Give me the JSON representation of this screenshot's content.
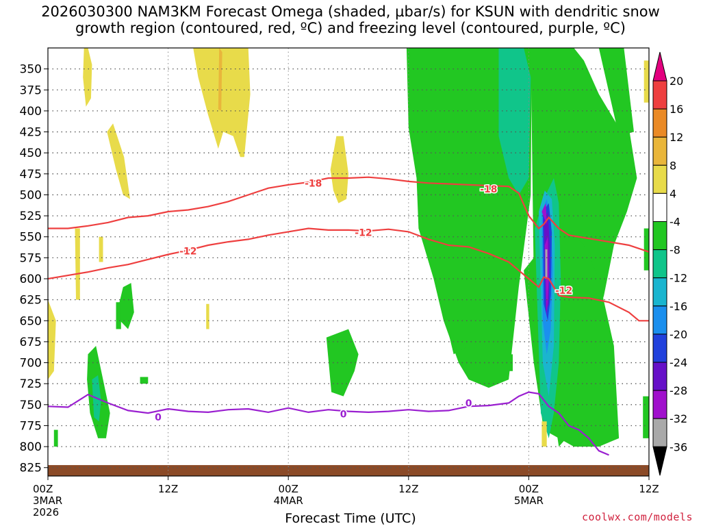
{
  "title_line1": "2026030300 NAM3KM Forecast Omega (shaded, µbar/s) for KSUN with dendritic snow",
  "title_line2": "growth region (contoured, red, ºC) and freezing level (contoured, purple, ºC)",
  "xaxis_title": "Forecast Time (UTC)",
  "credit": "coolwx.com/models",
  "chart_data": {
    "type": "heatmap",
    "title": "2026030300 NAM3KM Forecast Omega (shaded, µbar/s) for KSUN with dendritic snow growth region (contoured, red, ºC) and freezing level (contoured, purple, ºC)",
    "xlabel": "Forecast Time (UTC)",
    "ylabel": "",
    "x_ticks": [
      {
        "hour": 0,
        "label": "00Z",
        "sub1": "3MAR",
        "sub2": "2026"
      },
      {
        "hour": 12,
        "label": "12Z",
        "sub1": "",
        "sub2": ""
      },
      {
        "hour": 24,
        "label": "00Z",
        "sub1": "4MAR",
        "sub2": ""
      },
      {
        "hour": 36,
        "label": "12Z",
        "sub1": "",
        "sub2": ""
      },
      {
        "hour": 48,
        "label": "00Z",
        "sub1": "5MAR",
        "sub2": ""
      },
      {
        "hour": 60,
        "label": "12Z",
        "sub1": "",
        "sub2": ""
      }
    ],
    "xlim": [
      0,
      60
    ],
    "y_ticks": [
      350,
      375,
      400,
      425,
      450,
      475,
      500,
      525,
      550,
      575,
      600,
      625,
      650,
      675,
      700,
      725,
      750,
      775,
      800,
      825
    ],
    "ylim": [
      325,
      835
    ],
    "y_inverted": true,
    "colorbar": {
      "labels": [
        "20",
        "16",
        "12",
        "8",
        "4",
        "-4",
        "-8",
        "-12",
        "-16",
        "-20",
        "-24",
        "-28",
        "-32",
        "-36"
      ],
      "bins": [
        {
          "color": "#e3007f"
        },
        {
          "color": "#ee3f3f"
        },
        {
          "color": "#ea8a26"
        },
        {
          "color": "#e9b63b"
        },
        {
          "color": "#e8db4a"
        },
        {
          "color": "#ffffff"
        },
        {
          "color": "#22c722"
        },
        {
          "color": "#10c58a"
        },
        {
          "color": "#1ab5cf"
        },
        {
          "color": "#1b8fee"
        },
        {
          "color": "#2141dc"
        },
        {
          "color": "#6610c8"
        },
        {
          "color": "#a010cc"
        },
        {
          "color": "#a9a9a9"
        },
        {
          "color": "#000000"
        }
      ]
    },
    "omega_regions": [
      {
        "level": "4",
        "x": [
          3.6,
          4.0,
          4.4,
          4.3,
          3.8,
          3.5,
          3.6
        ],
        "y": [
          325,
          325,
          345,
          385,
          395,
          360,
          325
        ]
      },
      {
        "level": "4",
        "x": [
          14.5,
          20.0,
          20.2,
          19.6,
          19.2,
          18.5,
          17.5,
          17.0,
          16.0,
          15.0,
          14.5
        ],
        "y": [
          325,
          325,
          380,
          455,
          455,
          430,
          425,
          445,
          405,
          360,
          325
        ]
      },
      {
        "level": "8",
        "x": [
          17.1,
          17.4,
          17.3,
          17.0,
          17.1
        ],
        "y": [
          325,
          330,
          400,
          398,
          325
        ]
      },
      {
        "level": "4",
        "x": [
          5.9,
          6.5,
          7.6,
          8.2,
          7.5,
          6.8,
          6.3,
          5.9
        ],
        "y": [
          425,
          415,
          455,
          505,
          500,
          470,
          445,
          425
        ]
      },
      {
        "level": "4",
        "x": [
          28.2,
          28.8,
          29.5,
          30.0,
          29.8,
          29.0,
          28.5,
          28.2
        ],
        "y": [
          470,
          430,
          430,
          475,
          505,
          510,
          495,
          470
        ]
      },
      {
        "level": "4",
        "x": [
          2.7,
          3.2,
          3.2,
          2.8,
          2.7
        ],
        "y": [
          540,
          540,
          625,
          625,
          540
        ]
      },
      {
        "level": "4",
        "x": [
          0.0,
          0.8,
          0.6,
          0.0,
          0.0
        ],
        "y": [
          625,
          650,
          710,
          720,
          625
        ]
      },
      {
        "level": "4",
        "x": [
          5.1,
          5.5,
          5.5,
          5.1,
          5.1
        ],
        "y": [
          550,
          550,
          580,
          580,
          550
        ]
      },
      {
        "level": "4",
        "x": [
          15.8,
          16.1,
          16.1,
          15.8,
          15.8
        ],
        "y": [
          630,
          630,
          660,
          660,
          630
        ]
      },
      {
        "level": "4",
        "x": [
          60.5,
          59.5,
          59.5,
          60.5
        ],
        "y": [
          340,
          340,
          390,
          390
        ]
      },
      {
        "level": "-4",
        "x": [
          35.8,
          48.3,
          48.2,
          47.0,
          46.0,
          44.0,
          42.0,
          41.0,
          39.5,
          38.5,
          37.5,
          37.0,
          36.8,
          36.0,
          35.8
        ],
        "y": [
          325,
          325,
          500,
          610,
          720,
          730,
          720,
          700,
          650,
          600,
          560,
          540,
          480,
          420,
          325
        ]
      },
      {
        "level": "-8",
        "x": [
          45.0,
          47.5,
          48.2,
          48.0,
          47.0,
          46.0,
          45.0,
          45.0
        ],
        "y": [
          325,
          325,
          360,
          480,
          500,
          480,
          430,
          325
        ]
      },
      {
        "level": "-4",
        "x": [
          39.0,
          41.5,
          43.0,
          42.0,
          40.5,
          39.5,
          39.0
        ],
        "y": [
          560,
          560,
          590,
          680,
          690,
          640,
          560
        ]
      },
      {
        "level": "-4",
        "x": [
          48.2,
          52.5,
          53.5,
          55.0,
          57.0,
          58.0,
          58.8,
          57.8,
          56.5,
          55.5,
          54.0,
          52.5,
          51.0,
          50.5,
          49.5,
          48.5,
          48.2
        ],
        "y": [
          325,
          325,
          340,
          380,
          420,
          420,
          480,
          520,
          560,
          620,
          680,
          780,
          800,
          760,
          680,
          600,
          325
        ]
      },
      {
        "level": "-4",
        "x": [
          55.0,
          57.5,
          58.5,
          57.0,
          55.0
        ],
        "y": [
          325,
          325,
          425,
          430,
          325
        ]
      },
      {
        "level": "-4",
        "x": [
          50.0,
          53.0,
          54.0,
          52.0,
          50.5,
          50.0
        ],
        "y": [
          500,
          500,
          620,
          620,
          560,
          500
        ]
      },
      {
        "level": "-4",
        "x": [
          47.5,
          49.5,
          51.0,
          53.5,
          55.0,
          56.5,
          57.0,
          55.0,
          52.5,
          51.0,
          49.5,
          48.5,
          47.5
        ],
        "y": [
          590,
          560,
          530,
          560,
          600,
          680,
          790,
          800,
          800,
          790,
          780,
          700,
          590
        ]
      },
      {
        "level": "-8",
        "x": [
          48.6,
          49.5,
          50.5,
          51.0,
          51.2,
          51.0,
          50.5,
          50.0,
          49.2,
          48.6
        ],
        "y": [
          540,
          505,
          480,
          510,
          600,
          700,
          760,
          790,
          760,
          540
        ]
      },
      {
        "level": "-12",
        "x": [
          49.0,
          49.6,
          50.3,
          50.6,
          50.5,
          50.0,
          49.4,
          49.0
        ],
        "y": [
          520,
          495,
          505,
          560,
          680,
          740,
          700,
          520
        ]
      },
      {
        "level": "-16",
        "x": [
          49.3,
          49.8,
          50.2,
          50.4,
          50.2,
          49.8,
          49.4,
          49.3
        ],
        "y": [
          520,
          505,
          530,
          590,
          660,
          690,
          650,
          520
        ]
      },
      {
        "level": "-20",
        "x": [
          49.4,
          50.0,
          50.3,
          50.2,
          49.9,
          49.5,
          49.4
        ],
        "y": [
          520,
          510,
          545,
          620,
          650,
          630,
          520
        ]
      },
      {
        "level": "-24",
        "x": [
          49.5,
          49.9,
          50.1,
          50.0,
          49.7,
          49.5
        ],
        "y": [
          530,
          520,
          560,
          630,
          640,
          530
        ]
      },
      {
        "level": "-28",
        "x": [
          49.6,
          49.9,
          50.0,
          49.8,
          49.6
        ],
        "y": [
          560,
          550,
          600,
          645,
          560
        ]
      },
      {
        "level": "-28",
        "x": [
          49.3,
          49.7,
          49.8,
          49.3
        ],
        "y": [
          520,
          510,
          535,
          520
        ]
      },
      {
        "level": "-32",
        "x": [
          49.65,
          49.85,
          49.85,
          49.65
        ],
        "y": [
          565,
          565,
          600,
          600
        ]
      },
      {
        "level": "-4",
        "x": [
          7.5,
          8.3,
          8.6,
          8.0,
          7.2,
          6.9,
          7.5
        ],
        "y": [
          610,
          605,
          640,
          660,
          650,
          640,
          610
        ]
      },
      {
        "level": "-4",
        "x": [
          6.8,
          7.3,
          7.3,
          6.8
        ],
        "y": [
          628,
          628,
          660,
          660
        ]
      },
      {
        "level": "-4",
        "x": [
          4.0,
          4.8,
          5.5,
          6.2,
          5.8,
          5.0,
          4.2,
          3.9,
          4.0
        ],
        "y": [
          690,
          680,
          720,
          760,
          790,
          790,
          760,
          720,
          690
        ]
      },
      {
        "level": "-8",
        "x": [
          4.4,
          5.0,
          5.3,
          5.1,
          4.6,
          4.4
        ],
        "y": [
          720,
          715,
          745,
          770,
          765,
          720
        ]
      },
      {
        "level": "-4",
        "x": [
          0.6,
          1.0,
          1.0,
          0.6
        ],
        "y": [
          780,
          780,
          800,
          800
        ]
      },
      {
        "level": "-4",
        "x": [
          9.2,
          10.0,
          10.0,
          9.2
        ],
        "y": [
          717,
          717,
          725,
          725
        ]
      },
      {
        "level": "-4",
        "x": [
          27.8,
          30.0,
          31.0,
          30.6,
          29.5,
          28.3,
          27.8
        ],
        "y": [
          670,
          660,
          690,
          710,
          740,
          735,
          670
        ]
      },
      {
        "level": "-4",
        "x": [
          45.8,
          46.4,
          46.4,
          45.8
        ],
        "y": [
          690,
          690,
          710,
          710
        ]
      },
      {
        "level": "-4",
        "x": [
          59.5,
          60.4,
          60.4,
          59.5
        ],
        "y": [
          540,
          540,
          590,
          590
        ]
      },
      {
        "level": "-4",
        "x": [
          59.4,
          60.2,
          60.2,
          59.4
        ],
        "y": [
          740,
          740,
          790,
          790
        ]
      },
      {
        "level": "4",
        "x": [
          49.3,
          49.8,
          49.8,
          49.3
        ],
        "y": [
          770,
          770,
          800,
          800
        ]
      }
    ],
    "contours": [
      {
        "name": "-18",
        "color": "#ee3f3f",
        "x": [
          0,
          2,
          4,
          6,
          8,
          10,
          12,
          14,
          16,
          18,
          20,
          22,
          24,
          26,
          28,
          30,
          32,
          34,
          36,
          38,
          40,
          42,
          44,
          46,
          47,
          48,
          49,
          49.5,
          50,
          51,
          52,
          54,
          56,
          58,
          60
        ],
        "y": [
          540,
          540,
          537,
          533,
          527,
          525,
          520,
          518,
          514,
          508,
          500,
          492,
          488,
          485,
          480,
          480,
          479,
          481,
          484,
          486,
          487,
          488,
          489,
          490,
          498,
          525,
          540,
          535,
          527,
          540,
          548,
          552,
          556,
          560,
          568
        ]
      },
      {
        "name": "-12",
        "color": "#ee3f3f",
        "x": [
          0,
          2,
          4,
          6,
          8,
          10,
          12,
          14,
          16,
          18,
          20,
          22,
          24,
          26,
          28,
          30,
          32,
          34,
          36,
          38,
          40,
          42,
          44,
          46,
          47,
          48,
          49,
          49.5,
          50,
          51,
          52,
          54,
          56,
          58,
          59,
          60
        ],
        "y": [
          600,
          596,
          592,
          587,
          583,
          577,
          571,
          566,
          560,
          556,
          553,
          548,
          544,
          540,
          542,
          542,
          543,
          541,
          544,
          553,
          560,
          562,
          570,
          580,
          590,
          600,
          610,
          598,
          600,
          620,
          622,
          623,
          628,
          640,
          650,
          650
        ]
      },
      {
        "name": "0",
        "color": "#9a1fd0",
        "x": [
          0,
          2,
          4,
          6,
          8,
          10,
          12,
          14,
          16,
          18,
          20,
          22,
          24,
          26,
          28,
          30,
          32,
          34,
          36,
          38,
          40,
          42,
          44,
          46,
          47,
          48,
          49,
          50,
          51,
          52,
          53,
          54,
          55,
          56
        ],
        "y": [
          752,
          753,
          738,
          748,
          757,
          760,
          755,
          758,
          759,
          756,
          755,
          759,
          754,
          759,
          756,
          758,
          759,
          758,
          756,
          758,
          757,
          752,
          751,
          748,
          740,
          735,
          737,
          752,
          760,
          775,
          780,
          790,
          805,
          810
        ]
      }
    ],
    "contour_labels": [
      {
        "text": "-18",
        "x": 26.5,
        "y": 486,
        "color": "#ee3f3f"
      },
      {
        "text": "-18",
        "x": 44.0,
        "y": 493,
        "color": "#ee3f3f"
      },
      {
        "text": "-12",
        "x": 31.5,
        "y": 545,
        "color": "#ee3f3f"
      },
      {
        "text": "-12",
        "x": 14.0,
        "y": 567,
        "color": "#ee3f3f"
      },
      {
        "text": "-12",
        "x": 51.5,
        "y": 614,
        "color": "#ee3f3f"
      },
      {
        "text": "0",
        "x": 11.0,
        "y": 765,
        "color": "#9a1fd0"
      },
      {
        "text": "0",
        "x": 29.5,
        "y": 761,
        "color": "#9a1fd0"
      },
      {
        "text": "0",
        "x": 42.0,
        "y": 748,
        "color": "#9a1fd0"
      }
    ],
    "terrain": {
      "color": "#8b4a27",
      "surface_pressure": 830
    }
  }
}
